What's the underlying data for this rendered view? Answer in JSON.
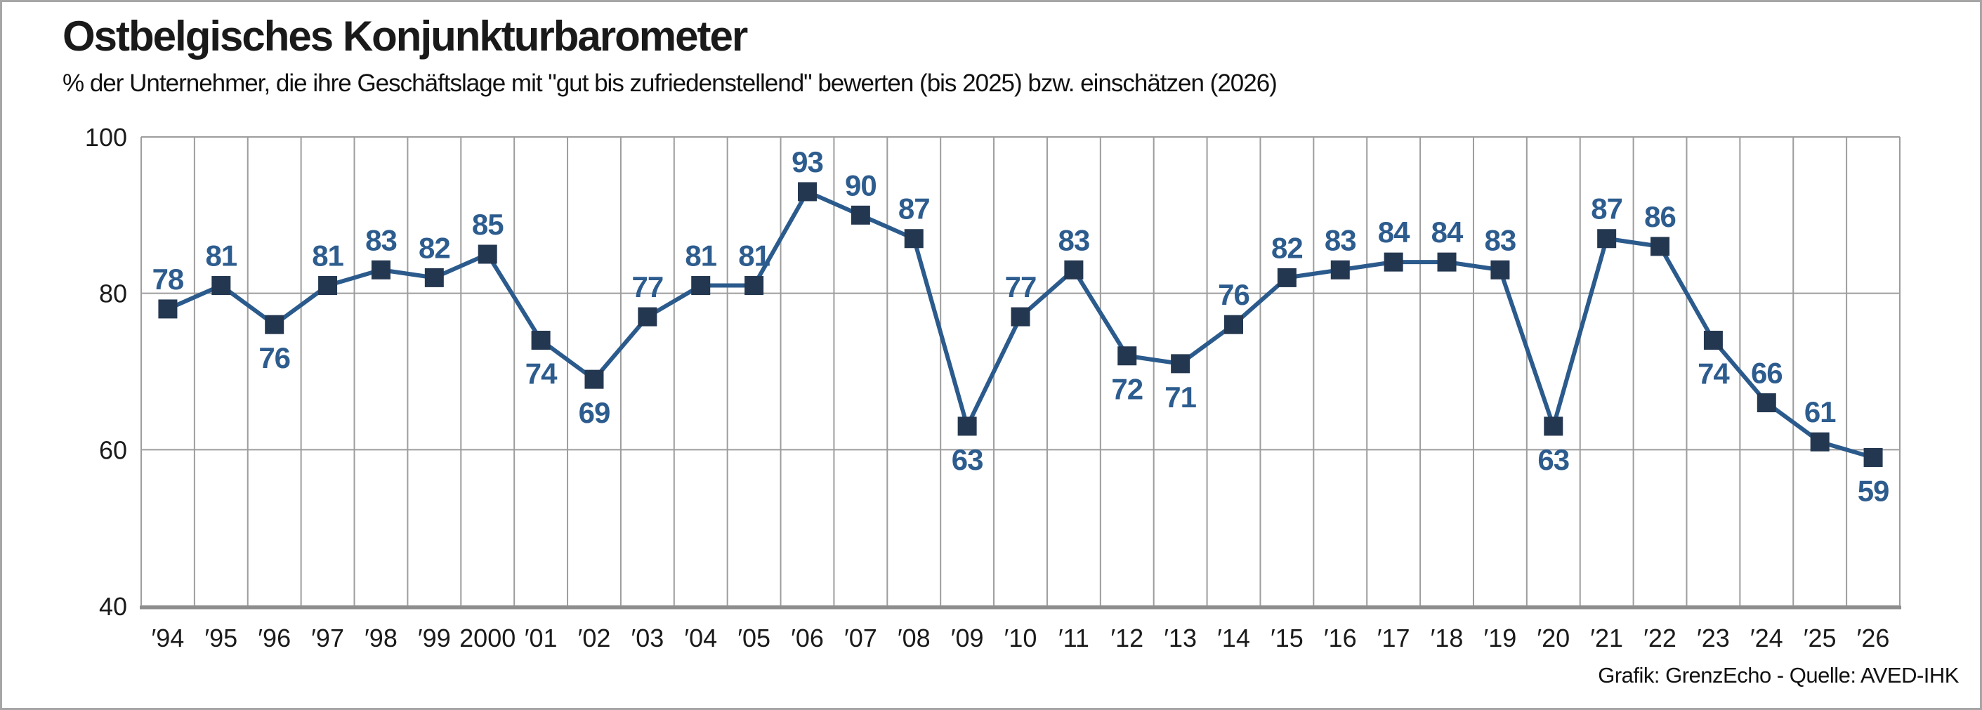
{
  "header": {
    "title": "Ostbelgisches Konjunkturbarometer",
    "subtitle": "% der Unternehmer, die ihre Geschäftslage mit \"gut bis zufriedenstellend\" bewerten (bis 2025) bzw. einschätzen (2026)"
  },
  "footer": {
    "credit": "Grafik: GrenzEcho - Quelle: AVED-IHK"
  },
  "colors": {
    "line": "#2b5a8c",
    "marker": "#243750",
    "value_label": "#2d5c8e",
    "grid": "#9d9d9d",
    "axis": "#8d8d8d",
    "tick_text": "#1a1a1a"
  },
  "chart_data": {
    "type": "line",
    "title": "Ostbelgisches Konjunkturbarometer",
    "subtitle": "% der Unternehmer, die ihre Geschäftslage mit \"gut bis zufriedenstellend\" bewerten (bis 2025) bzw. einschätzen (2026)",
    "categories": [
      "′94",
      "′95",
      "′96",
      "′97",
      "′98",
      "′99",
      "2000",
      "′01",
      "′02",
      "′03",
      "′04",
      "′05",
      "′06",
      "′07",
      "′08",
      "′09",
      "′10",
      "′11",
      "′12",
      "′13",
      "′14",
      "′15",
      "′16",
      "′17",
      "′18",
      "′19",
      "′20",
      "′21",
      "′22",
      "′23",
      "′24",
      "′25",
      "′26"
    ],
    "values": [
      78,
      81,
      76,
      81,
      83,
      82,
      85,
      74,
      69,
      77,
      81,
      81,
      93,
      90,
      87,
      63,
      77,
      83,
      72,
      71,
      76,
      82,
      83,
      84,
      84,
      83,
      63,
      87,
      86,
      74,
      66,
      61,
      59
    ],
    "label_positions": [
      "above",
      "above",
      "below",
      "above",
      "above",
      "above",
      "above",
      "below",
      "below",
      "above",
      "above",
      "above",
      "above",
      "above",
      "above",
      "below",
      "above",
      "above",
      "below",
      "below",
      "above",
      "above",
      "above",
      "above",
      "above",
      "above",
      "below",
      "above",
      "above",
      "below",
      "above",
      "above",
      "below"
    ],
    "ylim": [
      40,
      100
    ],
    "yticks": [
      100,
      80,
      60,
      40
    ],
    "xlabel": "",
    "ylabel": "",
    "grid": "both",
    "legend": "none",
    "marker": "square",
    "data_labels": true
  }
}
